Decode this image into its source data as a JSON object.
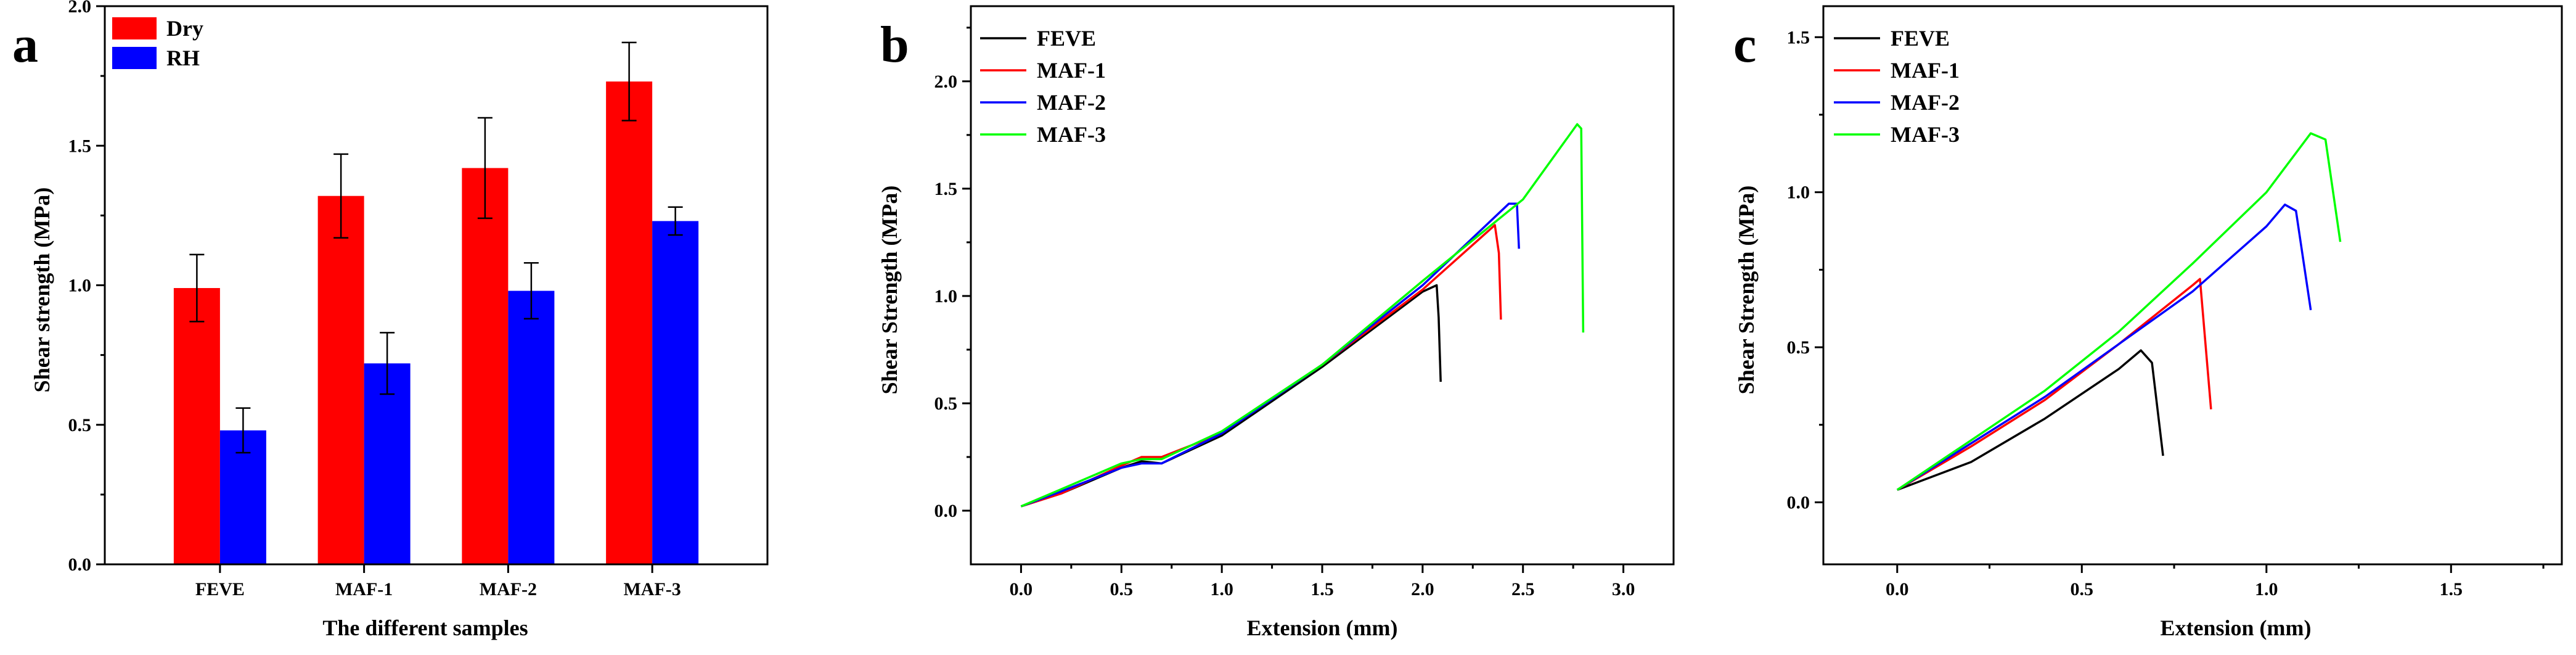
{
  "chart_data": [
    {
      "panel": "a",
      "type": "bar",
      "title": "",
      "xlabel": "The different samples",
      "ylabel": "Shear strength (MPa)",
      "categories": [
        "FEVE",
        "MAF-1",
        "MAF-2",
        "MAF-3"
      ],
      "ylim": [
        0,
        2.0
      ],
      "yticks": [
        "0.0",
        "0.5",
        "1.0",
        "1.5",
        "2.0"
      ],
      "legend_position": "top-left",
      "series": [
        {
          "name": "Dry",
          "color": "#ff0000",
          "values": [
            0.99,
            1.32,
            1.42,
            1.73
          ],
          "errors": [
            0.12,
            0.15,
            0.18,
            0.14
          ]
        },
        {
          "name": "RH",
          "color": "#0000ff",
          "values": [
            0.48,
            0.72,
            0.98,
            1.23
          ],
          "errors": [
            0.08,
            0.11,
            0.1,
            0.05
          ]
        }
      ]
    },
    {
      "panel": "b",
      "type": "line",
      "title": "",
      "xlabel": "Extension (mm)",
      "ylabel": "Shear Strength (MPa)",
      "xlim": [
        -0.25,
        3.25
      ],
      "ylim": [
        -0.25,
        2.35
      ],
      "xticks": [
        "0.0",
        "0.5",
        "1.0",
        "1.5",
        "2.0",
        "2.5",
        "3.0"
      ],
      "yticks": [
        "0.0",
        "0.5",
        "1.0",
        "1.5",
        "2.0"
      ],
      "legend_position": "top-left",
      "series": [
        {
          "name": "FEVE",
          "color": "#000000",
          "x": [
            0,
            0.2,
            0.5,
            0.6,
            0.7,
            1.0,
            1.5,
            2.0,
            2.07,
            2.08,
            2.09
          ],
          "y": [
            0.02,
            0.08,
            0.2,
            0.23,
            0.22,
            0.35,
            0.67,
            1.02,
            1.05,
            0.9,
            0.6
          ]
        },
        {
          "name": "MAF-1",
          "color": "#ff0000",
          "x": [
            0,
            0.2,
            0.5,
            0.6,
            0.7,
            1.0,
            1.5,
            2.0,
            2.36,
            2.38,
            2.39
          ],
          "y": [
            0.02,
            0.08,
            0.21,
            0.25,
            0.25,
            0.36,
            0.68,
            1.03,
            1.33,
            1.2,
            0.89
          ]
        },
        {
          "name": "MAF-2",
          "color": "#0000ff",
          "x": [
            0,
            0.2,
            0.5,
            0.6,
            0.7,
            1.0,
            1.5,
            2.0,
            2.43,
            2.47,
            2.48
          ],
          "y": [
            0.02,
            0.09,
            0.2,
            0.22,
            0.22,
            0.36,
            0.68,
            1.05,
            1.43,
            1.43,
            1.22
          ]
        },
        {
          "name": "MAF-3",
          "color": "#00ff00",
          "x": [
            0,
            0.2,
            0.5,
            0.6,
            0.7,
            1.0,
            1.5,
            2.0,
            2.5,
            2.77,
            2.79,
            2.8
          ],
          "y": [
            0.02,
            0.1,
            0.22,
            0.24,
            0.24,
            0.37,
            0.68,
            1.07,
            1.45,
            1.8,
            1.78,
            0.83
          ]
        }
      ]
    },
    {
      "panel": "c",
      "type": "line",
      "title": "",
      "xlabel": "Extension (mm)",
      "ylabel": "Shear Strength (MPa)",
      "xlim": [
        -0.2,
        1.8
      ],
      "ylim": [
        -0.2,
        1.6
      ],
      "xticks": [
        "0.0",
        "0.5",
        "1.0",
        "1.5"
      ],
      "yticks": [
        "0.0",
        "0.5",
        "1.0",
        "1.5"
      ],
      "legend_position": "top-left",
      "series": [
        {
          "name": "FEVE",
          "color": "#000000",
          "x": [
            0,
            0.2,
            0.4,
            0.6,
            0.66,
            0.69,
            0.72
          ],
          "y": [
            0.04,
            0.13,
            0.27,
            0.43,
            0.49,
            0.45,
            0.15
          ]
        },
        {
          "name": "MAF-1",
          "color": "#ff0000",
          "x": [
            0,
            0.2,
            0.4,
            0.6,
            0.8,
            0.82,
            0.85
          ],
          "y": [
            0.04,
            0.18,
            0.33,
            0.51,
            0.7,
            0.72,
            0.3
          ]
        },
        {
          "name": "MAF-2",
          "color": "#0000ff",
          "x": [
            0,
            0.2,
            0.4,
            0.6,
            0.8,
            1.0,
            1.05,
            1.08,
            1.12
          ],
          "y": [
            0.04,
            0.19,
            0.34,
            0.51,
            0.68,
            0.89,
            0.96,
            0.94,
            0.62
          ]
        },
        {
          "name": "MAF-3",
          "color": "#00ff00",
          "x": [
            0,
            0.2,
            0.4,
            0.6,
            0.8,
            1.0,
            1.12,
            1.16,
            1.2
          ],
          "y": [
            0.04,
            0.2,
            0.36,
            0.55,
            0.77,
            1.0,
            1.19,
            1.17,
            0.84
          ]
        }
      ]
    }
  ],
  "panel_labels": {
    "a": "a",
    "b": "b",
    "c": "c"
  }
}
